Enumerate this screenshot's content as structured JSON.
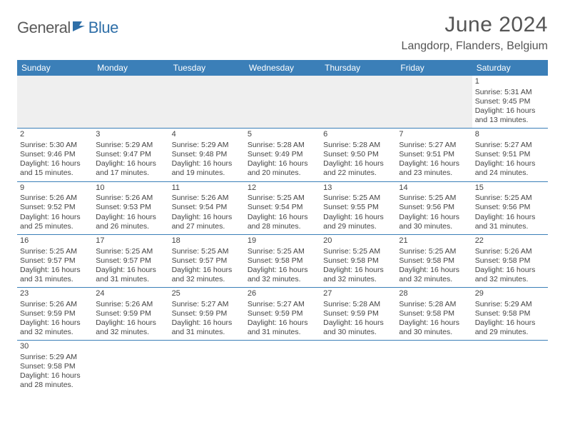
{
  "logo": {
    "part1": "General",
    "part2": "Blue"
  },
  "title": "June 2024",
  "location": "Langdorp, Flanders, Belgium",
  "colors": {
    "header_bg": "#3b7fb8",
    "header_text": "#ffffff",
    "border": "#3b7fb8",
    "logo_gray": "#5a5a5a",
    "logo_blue": "#2f6fa8",
    "text": "#444444"
  },
  "weekdays": [
    "Sunday",
    "Monday",
    "Tuesday",
    "Wednesday",
    "Thursday",
    "Friday",
    "Saturday"
  ],
  "weeks": [
    [
      null,
      null,
      null,
      null,
      null,
      null,
      {
        "d": "1",
        "sr": "Sunrise: 5:31 AM",
        "ss": "Sunset: 9:45 PM",
        "dl1": "Daylight: 16 hours",
        "dl2": "and 13 minutes."
      }
    ],
    [
      {
        "d": "2",
        "sr": "Sunrise: 5:30 AM",
        "ss": "Sunset: 9:46 PM",
        "dl1": "Daylight: 16 hours",
        "dl2": "and 15 minutes."
      },
      {
        "d": "3",
        "sr": "Sunrise: 5:29 AM",
        "ss": "Sunset: 9:47 PM",
        "dl1": "Daylight: 16 hours",
        "dl2": "and 17 minutes."
      },
      {
        "d": "4",
        "sr": "Sunrise: 5:29 AM",
        "ss": "Sunset: 9:48 PM",
        "dl1": "Daylight: 16 hours",
        "dl2": "and 19 minutes."
      },
      {
        "d": "5",
        "sr": "Sunrise: 5:28 AM",
        "ss": "Sunset: 9:49 PM",
        "dl1": "Daylight: 16 hours",
        "dl2": "and 20 minutes."
      },
      {
        "d": "6",
        "sr": "Sunrise: 5:28 AM",
        "ss": "Sunset: 9:50 PM",
        "dl1": "Daylight: 16 hours",
        "dl2": "and 22 minutes."
      },
      {
        "d": "7",
        "sr": "Sunrise: 5:27 AM",
        "ss": "Sunset: 9:51 PM",
        "dl1": "Daylight: 16 hours",
        "dl2": "and 23 minutes."
      },
      {
        "d": "8",
        "sr": "Sunrise: 5:27 AM",
        "ss": "Sunset: 9:51 PM",
        "dl1": "Daylight: 16 hours",
        "dl2": "and 24 minutes."
      }
    ],
    [
      {
        "d": "9",
        "sr": "Sunrise: 5:26 AM",
        "ss": "Sunset: 9:52 PM",
        "dl1": "Daylight: 16 hours",
        "dl2": "and 25 minutes."
      },
      {
        "d": "10",
        "sr": "Sunrise: 5:26 AM",
        "ss": "Sunset: 9:53 PM",
        "dl1": "Daylight: 16 hours",
        "dl2": "and 26 minutes."
      },
      {
        "d": "11",
        "sr": "Sunrise: 5:26 AM",
        "ss": "Sunset: 9:54 PM",
        "dl1": "Daylight: 16 hours",
        "dl2": "and 27 minutes."
      },
      {
        "d": "12",
        "sr": "Sunrise: 5:25 AM",
        "ss": "Sunset: 9:54 PM",
        "dl1": "Daylight: 16 hours",
        "dl2": "and 28 minutes."
      },
      {
        "d": "13",
        "sr": "Sunrise: 5:25 AM",
        "ss": "Sunset: 9:55 PM",
        "dl1": "Daylight: 16 hours",
        "dl2": "and 29 minutes."
      },
      {
        "d": "14",
        "sr": "Sunrise: 5:25 AM",
        "ss": "Sunset: 9:56 PM",
        "dl1": "Daylight: 16 hours",
        "dl2": "and 30 minutes."
      },
      {
        "d": "15",
        "sr": "Sunrise: 5:25 AM",
        "ss": "Sunset: 9:56 PM",
        "dl1": "Daylight: 16 hours",
        "dl2": "and 31 minutes."
      }
    ],
    [
      {
        "d": "16",
        "sr": "Sunrise: 5:25 AM",
        "ss": "Sunset: 9:57 PM",
        "dl1": "Daylight: 16 hours",
        "dl2": "and 31 minutes."
      },
      {
        "d": "17",
        "sr": "Sunrise: 5:25 AM",
        "ss": "Sunset: 9:57 PM",
        "dl1": "Daylight: 16 hours",
        "dl2": "and 31 minutes."
      },
      {
        "d": "18",
        "sr": "Sunrise: 5:25 AM",
        "ss": "Sunset: 9:57 PM",
        "dl1": "Daylight: 16 hours",
        "dl2": "and 32 minutes."
      },
      {
        "d": "19",
        "sr": "Sunrise: 5:25 AM",
        "ss": "Sunset: 9:58 PM",
        "dl1": "Daylight: 16 hours",
        "dl2": "and 32 minutes."
      },
      {
        "d": "20",
        "sr": "Sunrise: 5:25 AM",
        "ss": "Sunset: 9:58 PM",
        "dl1": "Daylight: 16 hours",
        "dl2": "and 32 minutes."
      },
      {
        "d": "21",
        "sr": "Sunrise: 5:25 AM",
        "ss": "Sunset: 9:58 PM",
        "dl1": "Daylight: 16 hours",
        "dl2": "and 32 minutes."
      },
      {
        "d": "22",
        "sr": "Sunrise: 5:26 AM",
        "ss": "Sunset: 9:58 PM",
        "dl1": "Daylight: 16 hours",
        "dl2": "and 32 minutes."
      }
    ],
    [
      {
        "d": "23",
        "sr": "Sunrise: 5:26 AM",
        "ss": "Sunset: 9:59 PM",
        "dl1": "Daylight: 16 hours",
        "dl2": "and 32 minutes."
      },
      {
        "d": "24",
        "sr": "Sunrise: 5:26 AM",
        "ss": "Sunset: 9:59 PM",
        "dl1": "Daylight: 16 hours",
        "dl2": "and 32 minutes."
      },
      {
        "d": "25",
        "sr": "Sunrise: 5:27 AM",
        "ss": "Sunset: 9:59 PM",
        "dl1": "Daylight: 16 hours",
        "dl2": "and 31 minutes."
      },
      {
        "d": "26",
        "sr": "Sunrise: 5:27 AM",
        "ss": "Sunset: 9:59 PM",
        "dl1": "Daylight: 16 hours",
        "dl2": "and 31 minutes."
      },
      {
        "d": "27",
        "sr": "Sunrise: 5:28 AM",
        "ss": "Sunset: 9:59 PM",
        "dl1": "Daylight: 16 hours",
        "dl2": "and 30 minutes."
      },
      {
        "d": "28",
        "sr": "Sunrise: 5:28 AM",
        "ss": "Sunset: 9:58 PM",
        "dl1": "Daylight: 16 hours",
        "dl2": "and 30 minutes."
      },
      {
        "d": "29",
        "sr": "Sunrise: 5:29 AM",
        "ss": "Sunset: 9:58 PM",
        "dl1": "Daylight: 16 hours",
        "dl2": "and 29 minutes."
      }
    ],
    [
      {
        "d": "30",
        "sr": "Sunrise: 5:29 AM",
        "ss": "Sunset: 9:58 PM",
        "dl1": "Daylight: 16 hours",
        "dl2": "and 28 minutes."
      },
      null,
      null,
      null,
      null,
      null,
      null
    ]
  ]
}
